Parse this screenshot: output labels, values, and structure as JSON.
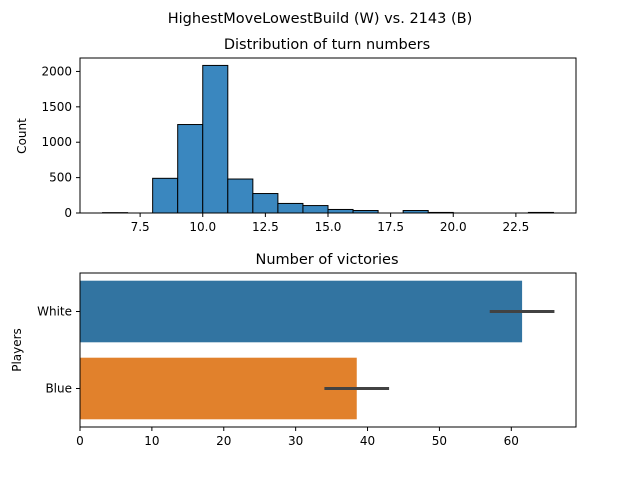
{
  "figure": {
    "suptitle": "HighestMoveLowestBuild (W) vs. 2143 (B)"
  },
  "chart_data": [
    {
      "type": "bar",
      "title": "Distribution of turn numbers",
      "xlabel": "",
      "ylabel": "Count",
      "xlim": [
        5.1,
        24.9
      ],
      "ylim": [
        0,
        2190
      ],
      "xticks": [
        7.5,
        10.0,
        12.5,
        15.0,
        17.5,
        20.0,
        22.5
      ],
      "xtick_labels": [
        "7.5",
        "10.0",
        "12.5",
        "15.0",
        "17.5",
        "20.0",
        "22.5"
      ],
      "yticks": [
        0,
        500,
        1000,
        1500,
        2000
      ],
      "ytick_labels": [
        "0",
        "500",
        "1000",
        "1500",
        "2000"
      ],
      "color": "#3a87bf",
      "edge_color": "#000000",
      "bins": [
        {
          "start": 6,
          "end": 7,
          "count": 5
        },
        {
          "start": 7,
          "end": 8,
          "count": 0
        },
        {
          "start": 8,
          "end": 9,
          "count": 490
        },
        {
          "start": 9,
          "end": 10,
          "count": 1250
        },
        {
          "start": 10,
          "end": 11,
          "count": 2085
        },
        {
          "start": 11,
          "end": 12,
          "count": 480
        },
        {
          "start": 12,
          "end": 13,
          "count": 275
        },
        {
          "start": 13,
          "end": 14,
          "count": 135
        },
        {
          "start": 14,
          "end": 15,
          "count": 105
        },
        {
          "start": 15,
          "end": 16,
          "count": 50
        },
        {
          "start": 16,
          "end": 17,
          "count": 35
        },
        {
          "start": 17,
          "end": 18,
          "count": 0
        },
        {
          "start": 18,
          "end": 19,
          "count": 35
        },
        {
          "start": 19,
          "end": 20,
          "count": 8
        },
        {
          "start": 20,
          "end": 21,
          "count": 0
        },
        {
          "start": 21,
          "end": 22,
          "count": 0
        },
        {
          "start": 22,
          "end": 23,
          "count": 0
        },
        {
          "start": 23,
          "end": 24,
          "count": 8
        }
      ]
    },
    {
      "type": "bar",
      "orientation": "horizontal",
      "title": "Number of victories",
      "xlabel": "",
      "ylabel": "Players",
      "xlim": [
        0,
        69
      ],
      "xticks": [
        0,
        10,
        20,
        30,
        40,
        50,
        60
      ],
      "xtick_labels": [
        "0",
        "10",
        "20",
        "30",
        "40",
        "50",
        "60"
      ],
      "categories": [
        "White",
        "Blue"
      ],
      "values": [
        61.5,
        38.5
      ],
      "error_intervals": [
        [
          57,
          66
        ],
        [
          34,
          43
        ]
      ],
      "colors": [
        "#3274a1",
        "#e1812c"
      ],
      "error_color": "#424242"
    }
  ]
}
